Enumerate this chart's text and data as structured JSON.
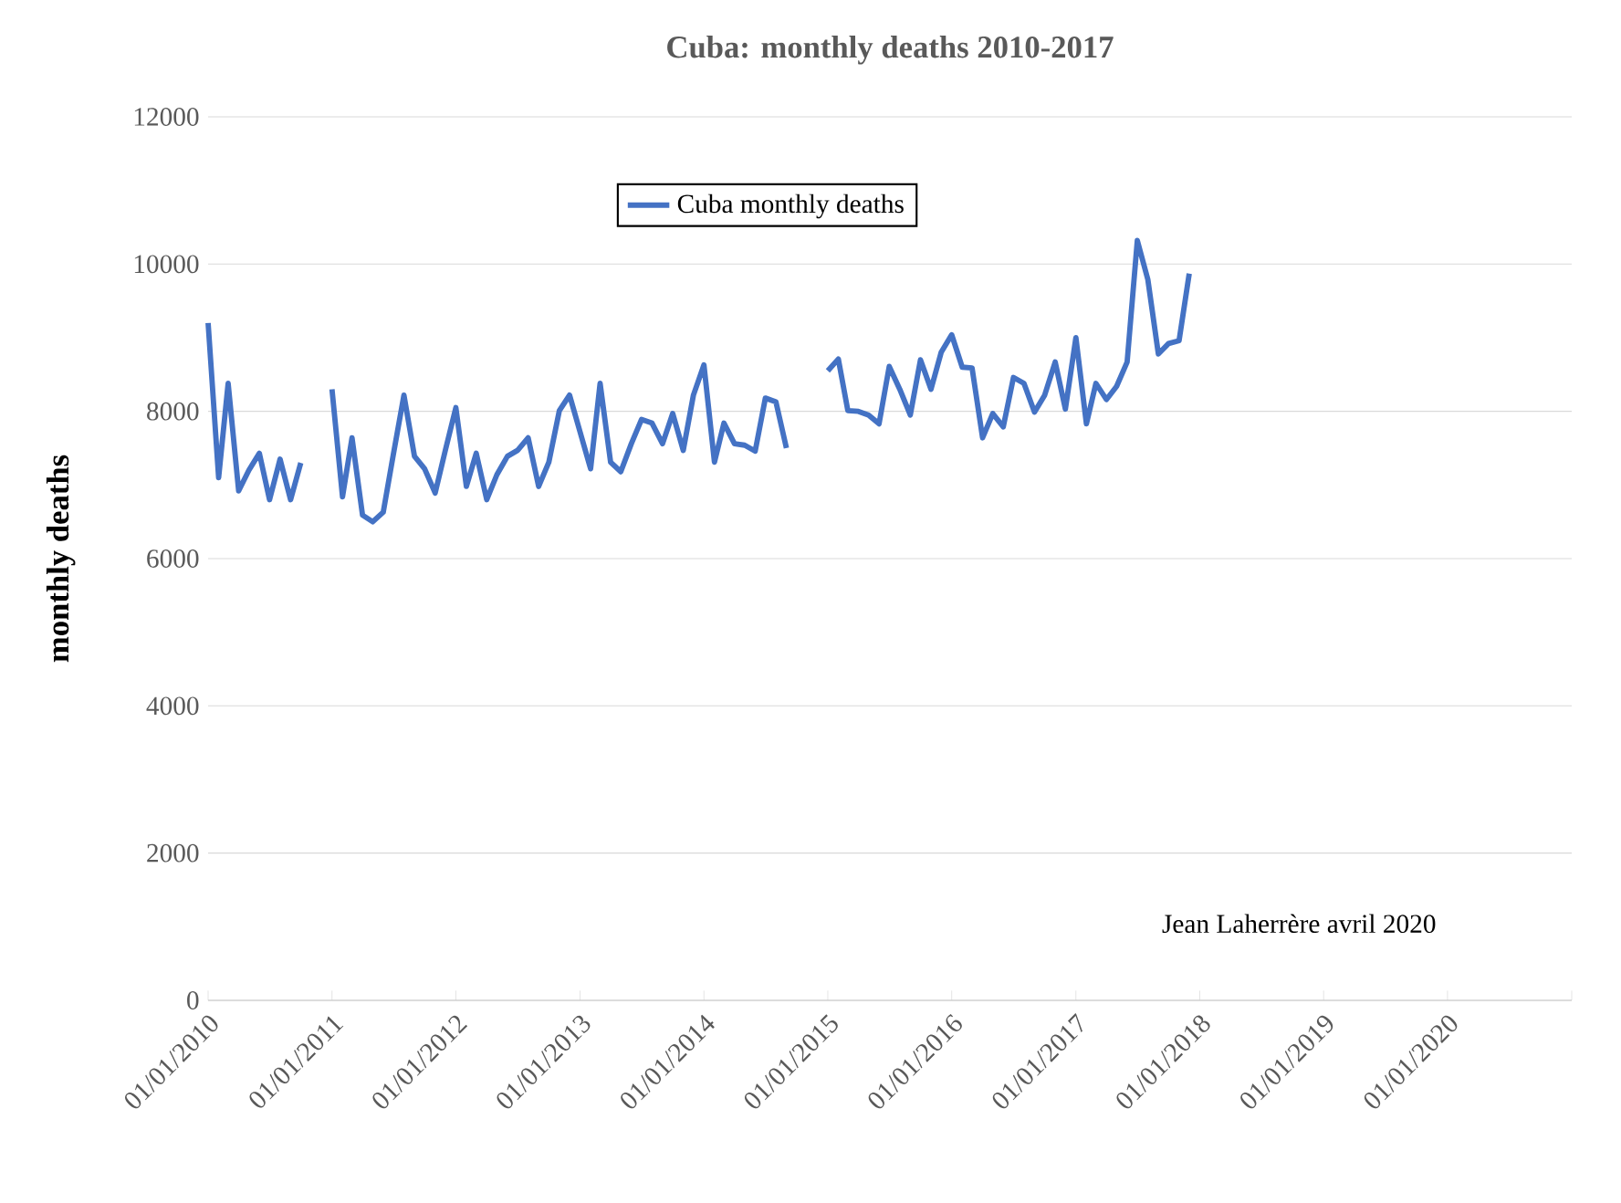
{
  "chart_data": {
    "type": "line",
    "title": "Cuba: monthly deaths 2010-2017",
    "ylabel": "monthly deaths",
    "annotations": [
      "Jean Laherrère avril 2020"
    ],
    "x": [
      "2010-01",
      "2010-02",
      "2010-03",
      "2010-04",
      "2010-05",
      "2010-06",
      "2010-07",
      "2010-08",
      "2010-09",
      "2010-10",
      "2010-11",
      "2010-12",
      "2011-01",
      "2011-02",
      "2011-03",
      "2011-04",
      "2011-05",
      "2011-06",
      "2011-07",
      "2011-08",
      "2011-09",
      "2011-10",
      "2011-11",
      "2011-12",
      "2012-01",
      "2012-02",
      "2012-03",
      "2012-04",
      "2012-05",
      "2012-06",
      "2012-07",
      "2012-08",
      "2012-09",
      "2012-10",
      "2012-11",
      "2012-12",
      "2013-01",
      "2013-02",
      "2013-03",
      "2013-04",
      "2013-05",
      "2013-06",
      "2013-07",
      "2013-08",
      "2013-09",
      "2013-10",
      "2013-11",
      "2013-12",
      "2014-01",
      "2014-02",
      "2014-03",
      "2014-04",
      "2014-05",
      "2014-06",
      "2014-07",
      "2014-08",
      "2014-09",
      "2014-10",
      "2014-11",
      "2014-12",
      "2015-01",
      "2015-02",
      "2015-03",
      "2015-04",
      "2015-05",
      "2015-06",
      "2015-07",
      "2015-08",
      "2015-09",
      "2015-10",
      "2015-11",
      "2015-12",
      "2016-01",
      "2016-02",
      "2016-03",
      "2016-04",
      "2016-05",
      "2016-06",
      "2016-07",
      "2016-08",
      "2016-09",
      "2016-10",
      "2016-11",
      "2016-12",
      "2017-01",
      "2017-02",
      "2017-03",
      "2017-04",
      "2017-05",
      "2017-06",
      "2017-07",
      "2017-08",
      "2017-09",
      "2017-10",
      "2017-11",
      "2017-12"
    ],
    "series": [
      {
        "name": "Cuba monthly deaths",
        "color": "#4472c4",
        "values": [
          9200,
          7100,
          8380,
          6920,
          7200,
          7430,
          6800,
          7350,
          6800,
          7300,
          null,
          null,
          8300,
          6840,
          7640,
          6590,
          6500,
          6630,
          7420,
          8220,
          7390,
          7220,
          6890,
          7470,
          8050,
          6980,
          7430,
          6800,
          7140,
          7390,
          7470,
          7640,
          6980,
          7310,
          8010,
          8220,
          7720,
          7220,
          8380,
          7310,
          7180,
          7560,
          7890,
          7840,
          7560,
          7970,
          7470,
          8220,
          8630,
          7310,
          7840,
          7560,
          7540,
          7460,
          8180,
          8130,
          7500,
          null,
          null,
          null,
          8550,
          8710,
          8010,
          8000,
          7950,
          7830,
          8610,
          8300,
          7950,
          8700,
          8300,
          8800,
          9040,
          8600,
          8590,
          7640,
          7970,
          7790,
          8460,
          8380,
          7990,
          8220,
          8670,
          8030,
          9000,
          7830,
          8380,
          8160,
          8340,
          8670,
          10320,
          9790,
          8780,
          8920,
          8960,
          9870
        ]
      }
    ],
    "xlim": [
      "2010-01-01",
      "2021-01-01"
    ],
    "xticks": [
      {
        "value": "2010-01-01",
        "label": "01/01/2010"
      },
      {
        "value": "2011-01-01",
        "label": "01/01/2011"
      },
      {
        "value": "2012-01-01",
        "label": "01/01/2012"
      },
      {
        "value": "2013-01-01",
        "label": "01/01/2013"
      },
      {
        "value": "2014-01-01",
        "label": "01/01/2014"
      },
      {
        "value": "2015-01-01",
        "label": "01/01/2015"
      },
      {
        "value": "2016-01-01",
        "label": "01/01/2016"
      },
      {
        "value": "2017-01-01",
        "label": "01/01/2017"
      },
      {
        "value": "2018-01-01",
        "label": "01/01/2018"
      },
      {
        "value": "2019-01-01",
        "label": "01/01/2019"
      },
      {
        "value": "2020-01-01",
        "label": "01/01/2020"
      },
      {
        "value": "2021-01-01",
        "label": null
      }
    ],
    "ylim": [
      0,
      12000
    ],
    "yticks": [
      0,
      2000,
      4000,
      6000,
      8000,
      10000,
      12000
    ],
    "grid": "y",
    "legend": "top",
    "marker": "none",
    "line_style": "solid"
  }
}
